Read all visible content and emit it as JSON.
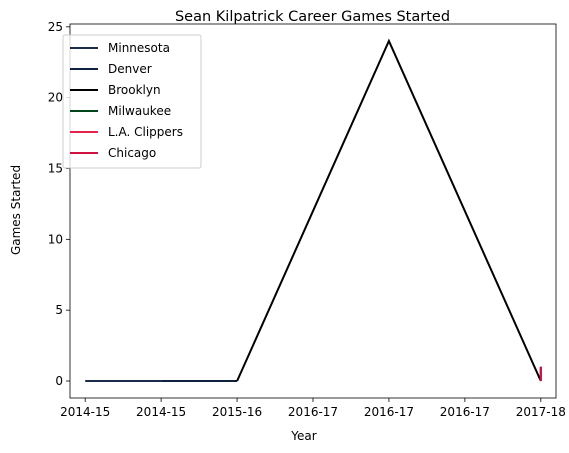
{
  "chart_data": {
    "type": "line",
    "title": "Sean Kilpatrick Career Games Started",
    "xlabel": "Year",
    "ylabel": "Games Started",
    "x_ticks": [
      "2014-15",
      "2014-15",
      "2015-16",
      "2016-17",
      "2016-17",
      "2016-17",
      "2017-18"
    ],
    "y_ticks": [
      0,
      5,
      10,
      15,
      20,
      25
    ],
    "xlim": [
      -0.2,
      6.2
    ],
    "ylim": [
      -1.2,
      25.2
    ],
    "grid": false,
    "legend_position": "top-left",
    "series": [
      {
        "name": "Minnesota",
        "color": "#1a2b4c",
        "points": [
          [
            0,
            0
          ],
          [
            1,
            0
          ]
        ]
      },
      {
        "name": "Denver",
        "color": "#0e2240",
        "points": [
          [
            1,
            0
          ],
          [
            2,
            0
          ]
        ]
      },
      {
        "name": "Brooklyn",
        "color": "#000000",
        "points": [
          [
            2,
            0
          ],
          [
            4,
            24
          ],
          [
            6,
            0
          ]
        ]
      },
      {
        "name": "Milwaukee",
        "color": "#00471b",
        "points": [
          [
            6,
            0
          ],
          [
            6,
            1
          ]
        ]
      },
      {
        "name": "L.A. Clippers",
        "color": "#e2234a",
        "points": [
          [
            6,
            0
          ],
          [
            6,
            1
          ]
        ]
      },
      {
        "name": "Chicago",
        "color": "#ce1141",
        "points": [
          [
            6,
            0
          ],
          [
            6,
            1
          ]
        ]
      }
    ]
  }
}
